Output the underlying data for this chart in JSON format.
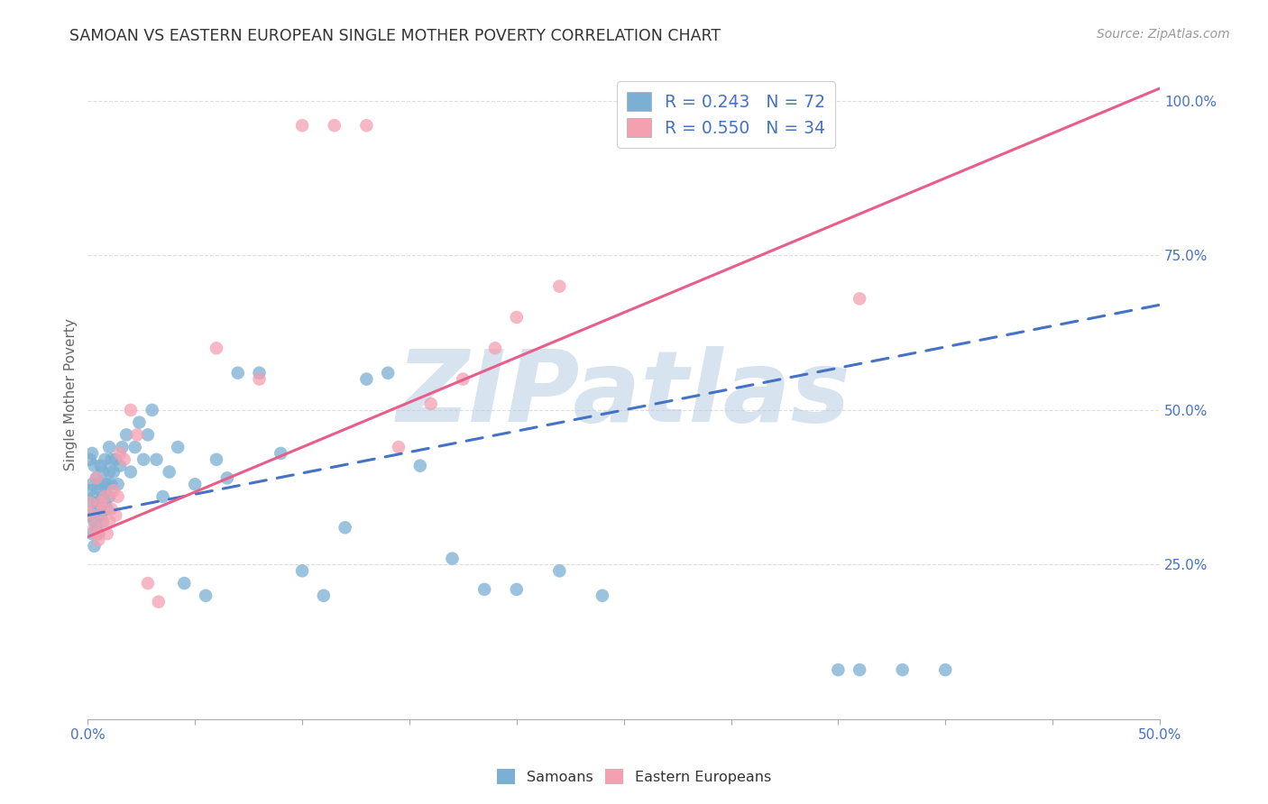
{
  "title": "SAMOAN VS EASTERN EUROPEAN SINGLE MOTHER POVERTY CORRELATION CHART",
  "source": "Source: ZipAtlas.com",
  "ylabel": "Single Mother Poverty",
  "xlim": [
    0.0,
    0.5
  ],
  "ylim": [
    0.0,
    1.05
  ],
  "xticks": [
    0.0,
    0.05,
    0.1,
    0.15,
    0.2,
    0.25,
    0.3,
    0.35,
    0.4,
    0.45,
    0.5
  ],
  "xticklabels": [
    "0.0%",
    "",
    "",
    "",
    "",
    "",
    "",
    "",
    "",
    "",
    "50.0%"
  ],
  "ytick_positions": [
    0.0,
    0.25,
    0.5,
    0.75,
    1.0
  ],
  "ytick_labels": [
    "",
    "25.0%",
    "50.0%",
    "75.0%",
    "100.0%"
  ],
  "background_color": "#ffffff",
  "grid_color": "#dddddd",
  "watermark_text": "ZIPatlas",
  "watermark_color": "#b8cce4",
  "legend_R_samoans": "R = 0.243",
  "legend_N_samoans": "N = 72",
  "legend_R_eastern": "R = 0.550",
  "legend_N_eastern": "N = 34",
  "samoans_color": "#7bafd4",
  "eastern_color": "#f4a0b0",
  "trend_samoans_color": "#4472c4",
  "trend_eastern_color": "#e85d8a",
  "trend_s_x0": 0.0,
  "trend_s_y0": 0.33,
  "trend_s_x1": 0.5,
  "trend_s_y1": 0.67,
  "trend_e_x0": 0.0,
  "trend_e_y0": 0.295,
  "trend_e_x1": 0.5,
  "trend_e_y1": 1.02,
  "samoans_x": [
    0.001,
    0.001,
    0.001,
    0.002,
    0.002,
    0.002,
    0.002,
    0.003,
    0.003,
    0.003,
    0.003,
    0.004,
    0.004,
    0.004,
    0.005,
    0.005,
    0.005,
    0.006,
    0.006,
    0.006,
    0.007,
    0.007,
    0.007,
    0.008,
    0.008,
    0.008,
    0.009,
    0.009,
    0.01,
    0.01,
    0.01,
    0.011,
    0.011,
    0.012,
    0.013,
    0.014,
    0.015,
    0.016,
    0.018,
    0.02,
    0.022,
    0.024,
    0.026,
    0.028,
    0.03,
    0.032,
    0.035,
    0.038,
    0.042,
    0.045,
    0.05,
    0.055,
    0.06,
    0.065,
    0.07,
    0.08,
    0.09,
    0.1,
    0.11,
    0.12,
    0.13,
    0.14,
    0.155,
    0.17,
    0.185,
    0.2,
    0.22,
    0.24,
    0.35,
    0.36,
    0.38,
    0.4
  ],
  "samoans_y": [
    0.33,
    0.37,
    0.42,
    0.3,
    0.35,
    0.38,
    0.43,
    0.28,
    0.32,
    0.36,
    0.41,
    0.31,
    0.35,
    0.39,
    0.3,
    0.34,
    0.38,
    0.33,
    0.37,
    0.41,
    0.32,
    0.36,
    0.4,
    0.35,
    0.38,
    0.42,
    0.34,
    0.38,
    0.36,
    0.4,
    0.44,
    0.38,
    0.42,
    0.4,
    0.42,
    0.38,
    0.41,
    0.44,
    0.46,
    0.4,
    0.44,
    0.48,
    0.42,
    0.46,
    0.5,
    0.42,
    0.36,
    0.4,
    0.44,
    0.22,
    0.38,
    0.2,
    0.42,
    0.39,
    0.56,
    0.56,
    0.43,
    0.24,
    0.2,
    0.31,
    0.55,
    0.56,
    0.41,
    0.26,
    0.21,
    0.21,
    0.24,
    0.2,
    0.08,
    0.08,
    0.08,
    0.08
  ],
  "eastern_x": [
    0.001,
    0.002,
    0.003,
    0.004,
    0.005,
    0.005,
    0.006,
    0.007,
    0.007,
    0.008,
    0.009,
    0.01,
    0.011,
    0.012,
    0.013,
    0.014,
    0.015,
    0.017,
    0.02,
    0.023,
    0.028,
    0.033,
    0.06,
    0.08,
    0.1,
    0.115,
    0.13,
    0.145,
    0.16,
    0.175,
    0.19,
    0.2,
    0.22,
    0.36
  ],
  "eastern_y": [
    0.35,
    0.33,
    0.31,
    0.39,
    0.3,
    0.29,
    0.35,
    0.32,
    0.34,
    0.36,
    0.3,
    0.32,
    0.34,
    0.37,
    0.33,
    0.36,
    0.43,
    0.42,
    0.5,
    0.46,
    0.22,
    0.19,
    0.6,
    0.55,
    0.96,
    0.96,
    0.96,
    0.44,
    0.51,
    0.55,
    0.6,
    0.65,
    0.7,
    0.68
  ]
}
